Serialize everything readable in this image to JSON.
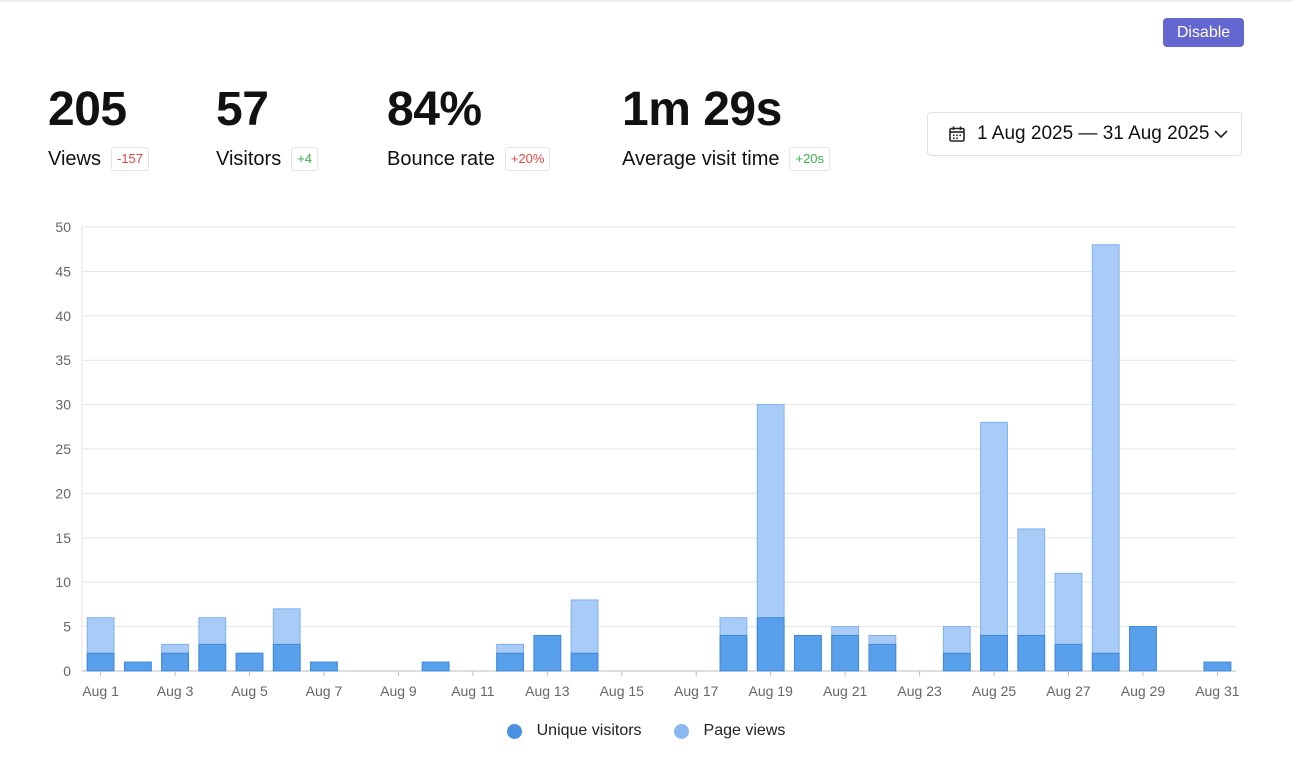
{
  "header": {
    "disable_label": "Disable"
  },
  "metrics": [
    {
      "value": "205",
      "label": "Views",
      "change": "-157",
      "trend": "negative"
    },
    {
      "value": "57",
      "label": "Visitors",
      "change": "+4",
      "trend": "positive"
    },
    {
      "value": "84%",
      "label": "Bounce rate",
      "change": "+20%",
      "trend": "negative"
    },
    {
      "value": "1m 29s",
      "label": "Average visit time",
      "change": "+20s",
      "trend": "positive"
    }
  ],
  "date_range": {
    "label": "1 Aug 2025 — 31 Aug 2025",
    "icon": "calendar-icon",
    "dropdown_icon": "chevron-down-icon"
  },
  "colors": {
    "accent": "#6467cf",
    "unique_visitors": "#4a90e2",
    "page_views": "#9cc3f5",
    "negative": "#e04848",
    "positive": "#38b24a"
  },
  "chart_data": {
    "type": "bar",
    "stacked": "overlay",
    "categories": [
      "Aug 1",
      "Aug 2",
      "Aug 3",
      "Aug 4",
      "Aug 5",
      "Aug 6",
      "Aug 7",
      "Aug 8",
      "Aug 9",
      "Aug 10",
      "Aug 11",
      "Aug 12",
      "Aug 13",
      "Aug 14",
      "Aug 15",
      "Aug 16",
      "Aug 17",
      "Aug 18",
      "Aug 19",
      "Aug 20",
      "Aug 21",
      "Aug 22",
      "Aug 23",
      "Aug 24",
      "Aug 25",
      "Aug 26",
      "Aug 27",
      "Aug 28",
      "Aug 29",
      "Aug 30",
      "Aug 31"
    ],
    "tick_labels": [
      "Aug 1",
      "Aug 3",
      "Aug 5",
      "Aug 7",
      "Aug 9",
      "Aug 11",
      "Aug 13",
      "Aug 15",
      "Aug 17",
      "Aug 19",
      "Aug 21",
      "Aug 23",
      "Aug 25",
      "Aug 27",
      "Aug 29",
      "Aug 31"
    ],
    "series": [
      {
        "name": "Unique visitors",
        "values": [
          2,
          1,
          2,
          3,
          2,
          3,
          1,
          0,
          0,
          1,
          0,
          2,
          4,
          2,
          0,
          0,
          0,
          4,
          6,
          4,
          4,
          3,
          0,
          2,
          4,
          4,
          3,
          2,
          5,
          0,
          1
        ]
      },
      {
        "name": "Page views",
        "values": [
          6,
          1,
          3,
          6,
          2,
          7,
          1,
          0,
          0,
          1,
          0,
          3,
          4,
          8,
          0,
          0,
          0,
          6,
          30,
          4,
          5,
          4,
          0,
          5,
          28,
          16,
          11,
          48,
          5,
          0,
          1
        ]
      }
    ],
    "ylim": [
      0,
      50
    ],
    "yticks": [
      0,
      5,
      10,
      15,
      20,
      25,
      30,
      35,
      40,
      45,
      50
    ],
    "grid": true,
    "legend": "bottom-center"
  }
}
